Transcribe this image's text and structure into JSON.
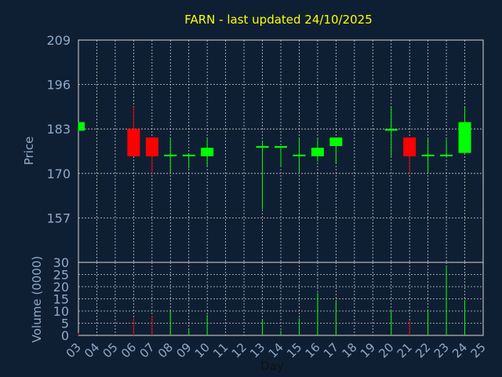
{
  "title": "FARN - last updated 24/10/2025",
  "colors": {
    "background": "#0f1f33",
    "up": "#00ff00",
    "down": "#ff0000",
    "title": "#ffff00",
    "axis_text": "#8ea9c8"
  },
  "chart_data": [
    {
      "type": "candlestick",
      "title": "FARN - last updated 24/10/2025",
      "ylabel": "Price",
      "ylim": [
        144,
        209
      ],
      "yticks": [
        209,
        196,
        183,
        170,
        157
      ],
      "grid": true,
      "candles": [
        {
          "day": "03",
          "open": 182.5,
          "high": 185,
          "low": 182.5,
          "close": 185
        },
        {
          "day": "06",
          "open": 183,
          "high": 189.5,
          "low": 175,
          "close": 175
        },
        {
          "day": "07",
          "open": 180.5,
          "high": 180.5,
          "low": 170,
          "close": 175
        },
        {
          "day": "08",
          "open": 175,
          "high": 180.5,
          "low": 170,
          "close": 175.5
        },
        {
          "day": "09",
          "open": 175,
          "high": 175.5,
          "low": 171.5,
          "close": 175.5
        },
        {
          "day": "10",
          "open": 175,
          "high": 180.5,
          "low": 172,
          "close": 177.5
        },
        {
          "day": "13",
          "open": 177.5,
          "high": 179.5,
          "low": 159.5,
          "close": 178
        },
        {
          "day": "14",
          "open": 177.5,
          "high": 178,
          "low": 172,
          "close": 178
        },
        {
          "day": "15",
          "open": 175,
          "high": 180.5,
          "low": 170,
          "close": 175.5
        },
        {
          "day": "16",
          "open": 175,
          "high": 180.5,
          "low": 173.5,
          "close": 177.5
        },
        {
          "day": "17",
          "open": 178,
          "high": 180.5,
          "low": 173,
          "close": 180.5
        },
        {
          "day": "20",
          "open": 182.5,
          "high": 189.5,
          "low": 175,
          "close": 183
        },
        {
          "day": "21",
          "open": 180.5,
          "high": 180.5,
          "low": 170,
          "close": 175
        },
        {
          "day": "22",
          "open": 175,
          "high": 180.5,
          "low": 170,
          "close": 175.5
        },
        {
          "day": "23",
          "open": 175,
          "high": 180,
          "low": 175,
          "close": 175.5
        },
        {
          "day": "24",
          "open": 176,
          "high": 189.5,
          "low": 176,
          "close": 185
        }
      ]
    },
    {
      "type": "bar",
      "ylabel": "Volume (0000)",
      "xlabel": "Day",
      "ylim": [
        0,
        30
      ],
      "yticks": [
        0,
        5,
        10,
        15,
        20,
        25,
        30
      ],
      "categories": [
        "03",
        "04",
        "05",
        "06",
        "07",
        "08",
        "09",
        "10",
        "11",
        "12",
        "13",
        "14",
        "15",
        "16",
        "17",
        "18",
        "19",
        "20",
        "21",
        "22",
        "23",
        "24",
        "25"
      ],
      "volumes": [
        {
          "day": "03",
          "value": 1,
          "color": "red"
        },
        {
          "day": "06",
          "value": 7,
          "color": "red"
        },
        {
          "day": "07",
          "value": 8,
          "color": "red"
        },
        {
          "day": "08",
          "value": 10.5,
          "color": "green"
        },
        {
          "day": "09",
          "value": 2.5,
          "color": "green"
        },
        {
          "day": "10",
          "value": 8.5,
          "color": "green"
        },
        {
          "day": "13",
          "value": 6.5,
          "color": "green"
        },
        {
          "day": "14",
          "value": 2,
          "color": "green"
        },
        {
          "day": "15",
          "value": 7,
          "color": "green"
        },
        {
          "day": "16",
          "value": 17.5,
          "color": "green"
        },
        {
          "day": "17",
          "value": 14,
          "color": "green"
        },
        {
          "day": "20",
          "value": 10.5,
          "color": "green"
        },
        {
          "day": "21",
          "value": 6,
          "color": "red"
        },
        {
          "day": "22",
          "value": 10.5,
          "color": "green"
        },
        {
          "day": "23",
          "value": 28,
          "color": "green"
        },
        {
          "day": "24",
          "value": 14.5,
          "color": "green"
        }
      ]
    }
  ]
}
